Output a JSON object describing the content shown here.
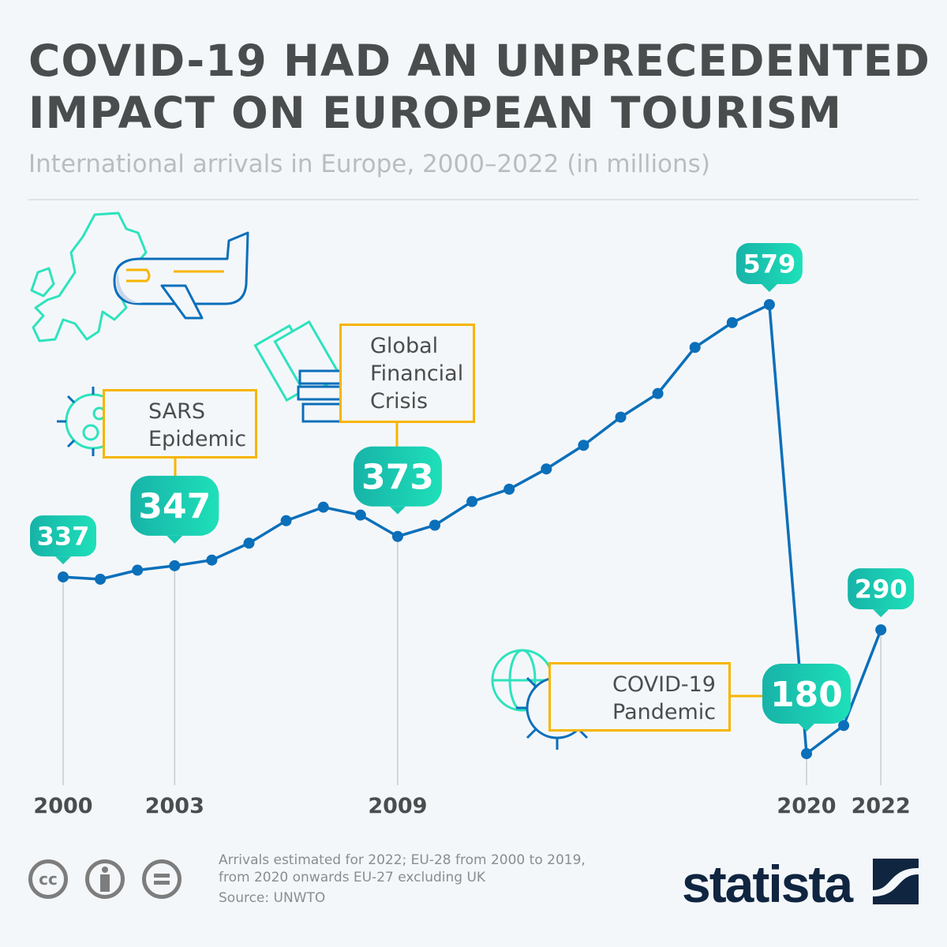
{
  "header": {
    "title_line1": "COVID-19 HAD AN UNPRECEDENTED",
    "title_line2": "IMPACT ON EUROPEAN TOURISM",
    "subtitle": "International arrivals in Europe, 2000–2022 (in millions)"
  },
  "chart_data": {
    "type": "line",
    "title": "COVID-19 HAD AN UNPRECEDENTED IMPACT ON EUROPEAN TOURISM",
    "subtitle": "International arrivals in Europe, 2000–2022 (in millions)",
    "x": [
      2000,
      2001,
      2002,
      2003,
      2004,
      2005,
      2006,
      2007,
      2008,
      2009,
      2010,
      2011,
      2012,
      2013,
      2014,
      2015,
      2016,
      2017,
      2018,
      2019,
      2020,
      2021,
      2022
    ],
    "values": [
      337,
      335,
      343,
      347,
      352,
      367,
      387,
      399,
      392,
      373,
      383,
      404,
      415,
      433,
      454,
      479,
      500,
      541,
      563,
      579,
      180,
      205,
      290
    ],
    "tick_labels": [
      "2000",
      "2003",
      "2009",
      "2020",
      "2022"
    ],
    "data_labels": [
      {
        "year": 2000,
        "label": "337",
        "size": "small"
      },
      {
        "year": 2003,
        "label": "347",
        "size": "large"
      },
      {
        "year": 2009,
        "label": "373",
        "size": "large"
      },
      {
        "year": 2019,
        "label": "579",
        "size": "small"
      },
      {
        "year": 2020,
        "label": "180",
        "size": "large"
      },
      {
        "year": 2022,
        "label": "290",
        "size": "small"
      }
    ],
    "grid": false,
    "line_color": "#0b6fba",
    "label_gradient": [
      "#17b3a8",
      "#1ee0b9"
    ],
    "annotation_color": "#f7b500"
  },
  "events": {
    "sars": [
      "SARS",
      "Epidemic"
    ],
    "gfc": [
      "Global",
      "Financial",
      "Crisis"
    ],
    "covid": [
      "COVID-19",
      "Pandemic"
    ]
  },
  "footer": {
    "note_line1": "Arrivals estimated for 2022; EU-28 from 2000 to 2019,",
    "note_line2": "from 2020 onwards EU-27 excluding UK",
    "source": "Source: UNWTO",
    "cc": "cc",
    "brand": "statista"
  }
}
